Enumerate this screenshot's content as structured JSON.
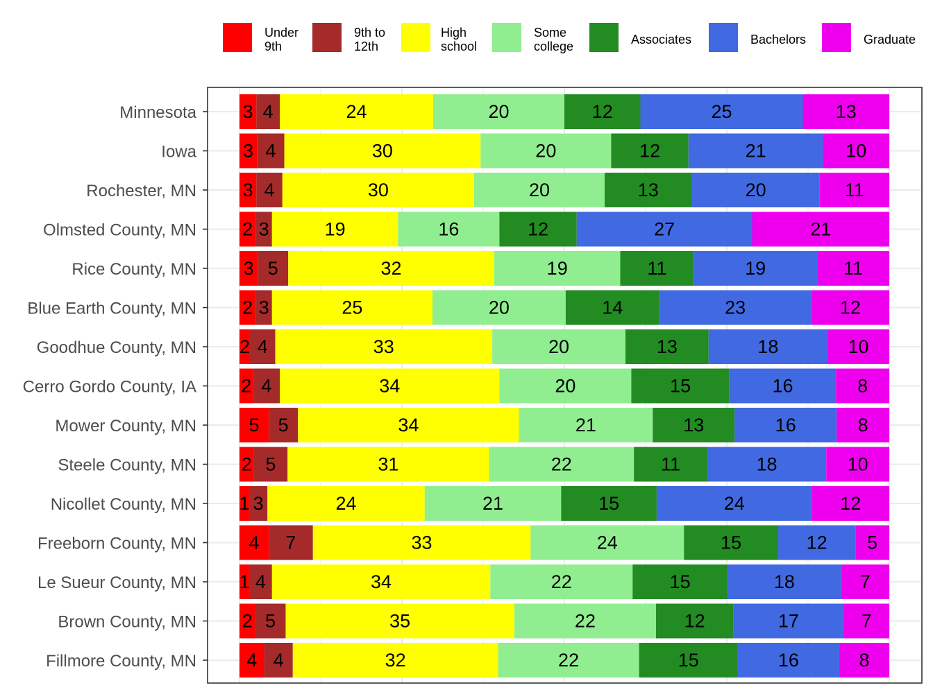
{
  "chart_data": {
    "type": "bar",
    "orientation": "horizontal",
    "stacked": true,
    "normalized": true,
    "title": "",
    "xlabel": "",
    "ylabel": "",
    "grid": true,
    "legend_position": "top",
    "categories": [
      "Minnesota",
      "Iowa",
      "Rochester, MN",
      "Olmsted County, MN",
      "Rice County, MN",
      "Blue Earth County, MN",
      "Goodhue County, MN",
      "Cerro Gordo County, IA",
      "Mower County, MN",
      "Steele County, MN",
      "Nicollet County, MN",
      "Freeborn County, MN",
      "Le Sueur County, MN",
      "Brown County, MN",
      "Fillmore County, MN"
    ],
    "series": [
      {
        "name": "Under 9th",
        "legend_lines": [
          "Under",
          "9th"
        ],
        "color": "#ff0000",
        "values": [
          3,
          3,
          3,
          2,
          3,
          2,
          2,
          2,
          5,
          2,
          1,
          4,
          1,
          2,
          4
        ],
        "shares": [
          2.6,
          2.7,
          2.6,
          2.5,
          2.8,
          2.5,
          1.6,
          2.1,
          4.5,
          2.2,
          1.5,
          4.5,
          1.5,
          2.4,
          3.8
        ]
      },
      {
        "name": "9th to 12th",
        "legend_lines": [
          "9th to",
          "12th"
        ],
        "color": "#a52a2a",
        "values": [
          4,
          4,
          4,
          3,
          5,
          3,
          4,
          4,
          5,
          5,
          3,
          7,
          4,
          5,
          4
        ],
        "shares": [
          3.6,
          4.2,
          4.0,
          2.5,
          4.7,
          2.5,
          3.9,
          4.1,
          4.5,
          5.2,
          2.8,
          6.8,
          3.5,
          4.7,
          4.4
        ]
      },
      {
        "name": "High school",
        "legend_lines": [
          "High",
          "school"
        ],
        "color": "#ffff00",
        "values": [
          24,
          30,
          30,
          19,
          32,
          25,
          33,
          34,
          34,
          31,
          24,
          33,
          34,
          35,
          32
        ],
        "shares": [
          23.6,
          30.2,
          29.5,
          19.4,
          31.7,
          24.7,
          33.4,
          33.8,
          34.0,
          31.0,
          24.2,
          33.5,
          33.6,
          35.2,
          31.6
        ]
      },
      {
        "name": "Some college",
        "legend_lines": [
          "Some",
          "college"
        ],
        "color": "#90ee90",
        "values": [
          20,
          20,
          20,
          16,
          19,
          20,
          20,
          20,
          21,
          22,
          21,
          24,
          22,
          22,
          22
        ],
        "shares": [
          20.2,
          20.1,
          20.1,
          15.6,
          19.4,
          20.5,
          20.5,
          20.3,
          20.6,
          22.3,
          21.0,
          23.6,
          21.9,
          21.8,
          21.7
        ]
      },
      {
        "name": "Associates",
        "legend_lines": [
          "Associates"
        ],
        "color": "#228b22",
        "values": [
          12,
          12,
          13,
          12,
          11,
          14,
          13,
          15,
          13,
          11,
          15,
          15,
          15,
          12,
          15
        ],
        "shares": [
          11.7,
          11.9,
          13.4,
          11.9,
          11.3,
          14.4,
          12.8,
          15.1,
          12.6,
          11.3,
          14.7,
          14.5,
          14.6,
          11.9,
          15.2
        ]
      },
      {
        "name": "Bachelors",
        "legend_lines": [
          "Bachelors"
        ],
        "color": "#4169e1",
        "values": [
          25,
          21,
          20,
          27,
          19,
          23,
          18,
          16,
          16,
          18,
          24,
          12,
          18,
          17,
          16
        ],
        "shares": [
          25.0,
          20.7,
          19.7,
          27.0,
          19.0,
          23.4,
          18.3,
          16.4,
          15.7,
          18.3,
          23.9,
          11.9,
          17.5,
          17.0,
          15.6
        ]
      },
      {
        "name": "Graduate",
        "legend_lines": [
          "Graduate"
        ],
        "color": "#ee00ee",
        "values": [
          13,
          10,
          11,
          21,
          11,
          12,
          10,
          8,
          8,
          10,
          12,
          5,
          7,
          7,
          8
        ],
        "shares": [
          13.3,
          10.2,
          10.7,
          21.1,
          11.1,
          12.0,
          9.5,
          8.2,
          8.1,
          9.7,
          11.9,
          5.2,
          7.4,
          7.0,
          7.7
        ]
      }
    ]
  }
}
